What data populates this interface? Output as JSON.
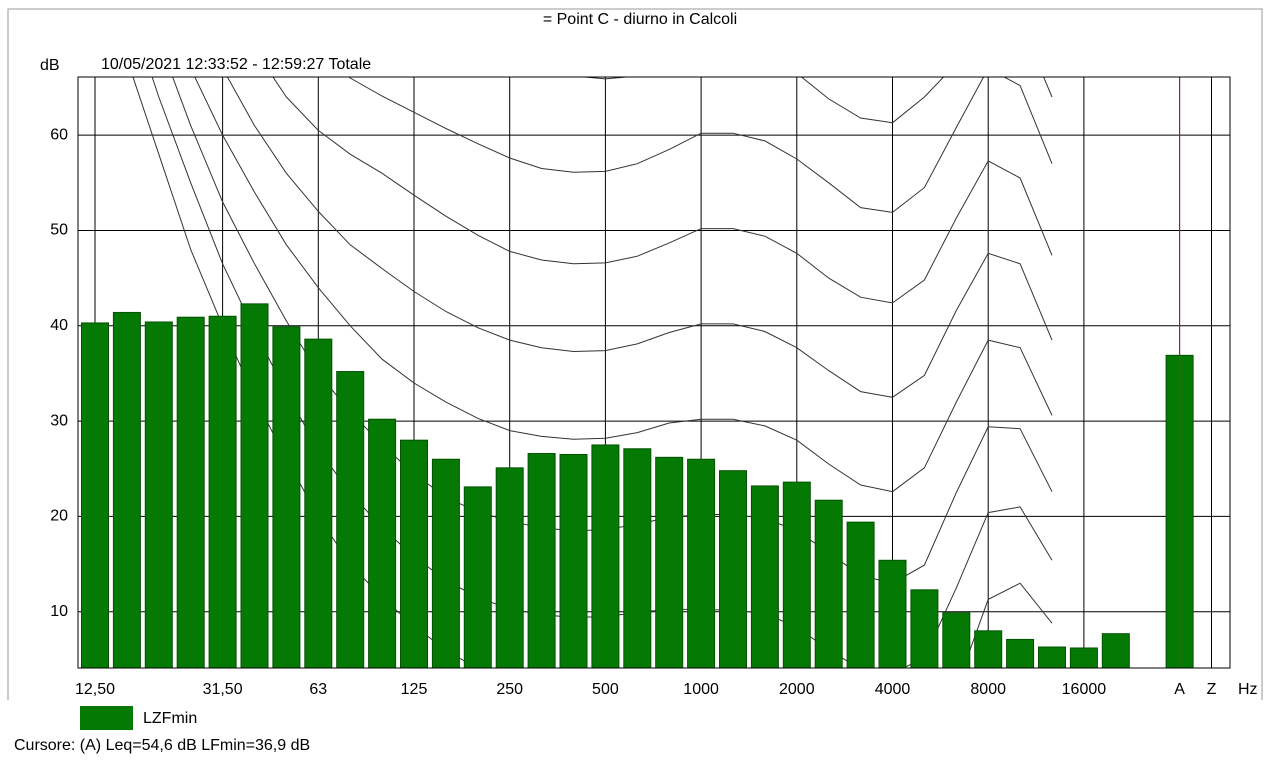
{
  "chart_data": {
    "type": "bar",
    "title": "= Point C - diurno in Calcoli",
    "subtitle": "10/05/2021 12:33:52 - 12:59:27  Totale",
    "y_label": "dB",
    "x_label": "Hz",
    "annotation": "Cursore: (A)  Leq=54,6 dB  LFmin=36,9 dB",
    "categories": [
      "12,50",
      null,
      null,
      null,
      "31,50",
      null,
      null,
      "63",
      null,
      null,
      "125",
      null,
      null,
      "250",
      null,
      null,
      "500",
      null,
      null,
      "1000",
      null,
      null,
      "2000",
      null,
      null,
      "4000",
      null,
      null,
      "8000",
      null,
      null,
      "16000",
      null,
      "A",
      "Z"
    ],
    "series": [
      {
        "name": "LZFmin",
        "color": "#047a04",
        "values": [
          40.3,
          41.4,
          40.4,
          40.9,
          41.0,
          42.3,
          39.9,
          38.6,
          35.2,
          30.2,
          28.0,
          26.0,
          23.1,
          25.1,
          26.6,
          26.5,
          27.5,
          27.1,
          26.2,
          26.0,
          24.8,
          23.2,
          23.6,
          21.7,
          19.4,
          15.4,
          12.3,
          9.9,
          8.0,
          7.1,
          6.3,
          6.2,
          7.7,
          36.9,
          null
        ]
      }
    ],
    "contours": [
      {
        "color": "#333333",
        "values": [
          115,
          108,
          101,
          95,
          90,
          86,
          82,
          79,
          76,
          74,
          72,
          70.5,
          69,
          67.8,
          66.8,
          66.2,
          65.9,
          66.2,
          67,
          70.2,
          70.2,
          69.4,
          66.5,
          63.8,
          61.8,
          61.3,
          64,
          67.5,
          74,
          72,
          64,
          null,
          null,
          null,
          null
        ]
      },
      {
        "color": "#333333",
        "values": [
          110,
          102,
          95,
          88,
          82,
          77,
          72.5,
          68.8,
          66,
          64.1,
          62.4,
          60.7,
          59.1,
          57.6,
          56.5,
          56.1,
          56.2,
          57,
          58.5,
          60.2,
          60.2,
          59.4,
          57.5,
          55,
          52.4,
          51.9,
          54.5,
          60.8,
          67,
          65.2,
          57,
          null,
          null,
          null,
          null
        ]
      },
      {
        "color": "#333333",
        "values": [
          105,
          96,
          88,
          81,
          74.5,
          69,
          64,
          60.5,
          58,
          56,
          53.7,
          51.5,
          49.5,
          47.8,
          46.9,
          46.5,
          46.6,
          47.3,
          48.7,
          50.2,
          50.2,
          49.4,
          47.6,
          45,
          43,
          42.4,
          44.8,
          51.3,
          57.3,
          55.5,
          47.4,
          null,
          null,
          null,
          null
        ]
      },
      {
        "color": "#333333",
        "values": [
          100,
          90,
          82,
          74,
          67,
          61,
          56,
          52,
          48.5,
          46,
          43.6,
          41.5,
          39.8,
          38.5,
          37.7,
          37.3,
          37.4,
          38.1,
          39.3,
          40.2,
          40.2,
          39.4,
          37.7,
          35.3,
          33.1,
          32.5,
          34.8,
          41.6,
          47.6,
          46.5,
          38.5,
          null,
          null,
          null,
          null
        ]
      },
      {
        "color": "#333333",
        "values": [
          95,
          85,
          76,
          67,
          60,
          54,
          48.5,
          44,
          40,
          36.5,
          34,
          32,
          30.3,
          29,
          28.4,
          28.1,
          28.2,
          28.8,
          29.8,
          30.2,
          30.2,
          29.5,
          28,
          25.5,
          23.3,
          22.6,
          25.1,
          32,
          38.5,
          37.7,
          30.6,
          null,
          null,
          null,
          null
        ]
      },
      {
        "color": "#333333",
        "values": [
          90,
          80,
          70,
          61,
          53,
          46.5,
          40.5,
          35,
          31,
          27.5,
          24.5,
          22,
          20.5,
          19.5,
          18.8,
          18.5,
          18.6,
          19.2,
          19.9,
          20.2,
          20.2,
          19.8,
          18.5,
          16.2,
          13.8,
          13,
          14.9,
          22.5,
          29.4,
          29.2,
          22.6,
          null,
          null,
          null,
          null
        ]
      },
      {
        "color": "#333333",
        "values": [
          85,
          74,
          64,
          55,
          46.5,
          39.5,
          33,
          27,
          22.5,
          18.8,
          15.8,
          13.3,
          11.5,
          10.3,
          9.7,
          9.4,
          9.5,
          9.9,
          10.3,
          10.2,
          10.2,
          9.8,
          8.4,
          6,
          4,
          3.5,
          5.2,
          12.5,
          20.4,
          21,
          15.4,
          null,
          null,
          null,
          null
        ]
      },
      {
        "color": "#333333",
        "values": [
          80,
          68,
          58,
          48,
          40,
          32.5,
          26,
          20,
          15,
          11.5,
          8.5,
          6,
          4,
          2.8,
          2,
          1.6,
          1.5,
          1.6,
          1.5,
          0.2,
          0,
          -0.5,
          -2,
          -4,
          -5.5,
          -5.8,
          -4.5,
          2,
          11.3,
          13,
          8.8,
          null,
          null,
          null,
          null
        ]
      }
    ],
    "ylim": [
      4.1,
      66.1
    ],
    "yticks": [
      10,
      20,
      30,
      40,
      50,
      60
    ],
    "grid": true,
    "legend": "bottom-left",
    "cursor_color": "#ff0000"
  }
}
